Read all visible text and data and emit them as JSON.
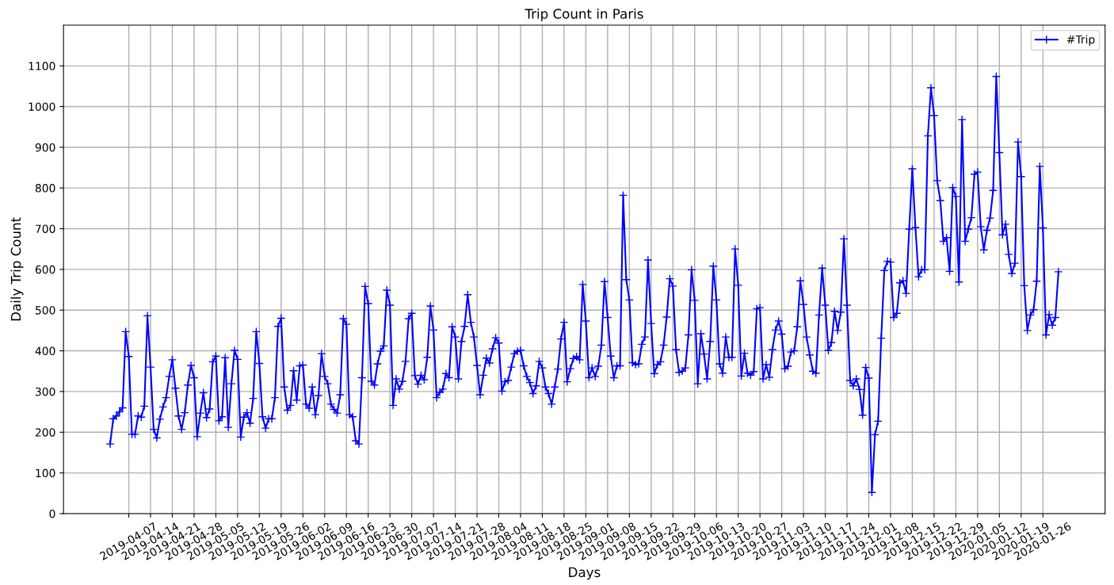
{
  "chart_data": {
    "type": "line",
    "title": "Trip Count in Paris",
    "xlabel": "Days",
    "ylabel": "Daily Trip Count",
    "x": [
      "2019-04-01",
      "2019-04-02",
      "2019-04-03",
      "2019-04-04",
      "2019-04-05",
      "2019-04-06",
      "2019-04-07",
      "2019-04-08",
      "2019-04-09",
      "2019-04-10",
      "2019-04-11",
      "2019-04-12",
      "2019-04-13",
      "2019-04-14",
      "2019-04-15",
      "2019-04-16",
      "2019-04-17",
      "2019-04-18",
      "2019-04-19",
      "2019-04-20",
      "2019-04-21",
      "2019-04-22",
      "2019-04-23",
      "2019-04-24",
      "2019-04-25",
      "2019-04-26",
      "2019-04-27",
      "2019-04-28",
      "2019-04-29",
      "2019-04-30",
      "2019-05-01",
      "2019-05-02",
      "2019-05-03",
      "2019-05-04",
      "2019-05-05",
      "2019-05-06",
      "2019-05-07",
      "2019-05-08",
      "2019-05-09",
      "2019-05-10",
      "2019-05-11",
      "2019-05-12",
      "2019-05-13",
      "2019-05-14",
      "2019-05-15",
      "2019-05-16",
      "2019-05-17",
      "2019-05-18",
      "2019-05-19",
      "2019-05-20",
      "2019-05-21",
      "2019-05-22",
      "2019-05-23",
      "2019-05-24",
      "2019-05-25",
      "2019-05-26",
      "2019-05-27",
      "2019-05-28",
      "2019-05-29",
      "2019-05-30",
      "2019-05-31",
      "2019-06-01",
      "2019-06-02",
      "2019-06-03",
      "2019-06-04",
      "2019-06-05",
      "2019-06-06",
      "2019-06-07",
      "2019-06-08",
      "2019-06-09",
      "2019-06-10",
      "2019-06-11",
      "2019-06-12",
      "2019-06-13",
      "2019-06-14",
      "2019-06-15",
      "2019-06-16",
      "2019-06-17",
      "2019-06-18",
      "2019-06-19",
      "2019-06-20",
      "2019-06-21",
      "2019-06-22",
      "2019-06-23",
      "2019-06-24",
      "2019-06-25",
      "2019-06-26",
      "2019-06-27",
      "2019-06-28",
      "2019-06-29",
      "2019-06-30",
      "2019-07-01",
      "2019-07-02",
      "2019-07-03",
      "2019-07-04",
      "2019-07-05",
      "2019-07-06",
      "2019-07-07",
      "2019-07-08",
      "2019-07-09",
      "2019-07-10",
      "2019-07-11",
      "2019-07-12",
      "2019-07-13",
      "2019-07-14",
      "2019-07-15",
      "2019-07-16",
      "2019-07-17",
      "2019-07-18",
      "2019-07-19",
      "2019-07-20",
      "2019-07-21",
      "2019-07-22",
      "2019-07-23",
      "2019-07-24",
      "2019-07-25",
      "2019-07-26",
      "2019-07-27",
      "2019-07-28",
      "2019-07-29",
      "2019-07-30",
      "2019-07-31",
      "2019-08-01",
      "2019-08-02",
      "2019-08-03",
      "2019-08-04",
      "2019-08-05",
      "2019-08-06",
      "2019-08-07",
      "2019-08-08",
      "2019-08-09",
      "2019-08-10",
      "2019-08-11",
      "2019-08-12",
      "2019-08-13",
      "2019-08-14",
      "2019-08-15",
      "2019-08-16",
      "2019-08-17",
      "2019-08-18",
      "2019-08-19",
      "2019-08-20",
      "2019-08-21",
      "2019-08-22",
      "2019-08-23",
      "2019-08-24",
      "2019-08-25",
      "2019-08-26",
      "2019-08-27",
      "2019-08-28",
      "2019-08-29",
      "2019-08-30",
      "2019-08-31",
      "2019-09-01",
      "2019-09-02",
      "2019-09-03",
      "2019-09-04",
      "2019-09-05",
      "2019-09-06",
      "2019-09-07",
      "2019-09-08",
      "2019-09-09",
      "2019-09-10",
      "2019-09-11",
      "2019-09-12",
      "2019-09-13",
      "2019-09-14",
      "2019-09-15",
      "2019-09-16",
      "2019-09-17",
      "2019-09-18",
      "2019-09-19",
      "2019-09-20",
      "2019-09-21",
      "2019-09-22",
      "2019-09-23",
      "2019-09-24",
      "2019-09-25",
      "2019-09-26",
      "2019-09-27",
      "2019-09-28",
      "2019-09-29",
      "2019-09-30",
      "2019-10-01",
      "2019-10-02",
      "2019-10-03",
      "2019-10-04",
      "2019-10-05",
      "2019-10-06",
      "2019-10-07",
      "2019-10-08",
      "2019-10-09",
      "2019-10-10",
      "2019-10-11",
      "2019-10-12",
      "2019-10-13",
      "2019-10-14",
      "2019-10-15",
      "2019-10-16",
      "2019-10-17",
      "2019-10-18",
      "2019-10-19",
      "2019-10-20",
      "2019-10-21",
      "2019-10-22",
      "2019-10-23",
      "2019-10-24",
      "2019-10-25",
      "2019-10-26",
      "2019-10-27",
      "2019-10-28",
      "2019-10-29",
      "2019-10-30",
      "2019-10-31",
      "2019-11-01",
      "2019-11-02",
      "2019-11-03",
      "2019-11-04",
      "2019-11-05",
      "2019-11-06",
      "2019-11-07",
      "2019-11-08",
      "2019-11-09",
      "2019-11-10",
      "2019-11-11",
      "2019-11-12",
      "2019-11-13",
      "2019-11-14",
      "2019-11-15",
      "2019-11-16",
      "2019-11-17",
      "2019-11-18",
      "2019-11-19",
      "2019-11-20",
      "2019-11-21",
      "2019-11-22",
      "2019-11-23",
      "2019-11-24",
      "2019-11-25",
      "2019-11-26",
      "2019-11-27",
      "2019-11-28",
      "2019-11-29",
      "2019-11-30",
      "2019-12-01",
      "2019-12-02",
      "2019-12-03",
      "2019-12-04",
      "2019-12-05",
      "2019-12-06",
      "2019-12-07",
      "2019-12-08",
      "2019-12-09",
      "2019-12-10",
      "2019-12-11",
      "2019-12-12",
      "2019-12-13",
      "2019-12-14",
      "2019-12-15",
      "2019-12-16",
      "2019-12-17",
      "2019-12-18",
      "2019-12-19",
      "2019-12-20",
      "2019-12-21",
      "2019-12-22",
      "2019-12-23",
      "2019-12-24",
      "2019-12-25",
      "2019-12-26",
      "2019-12-27",
      "2019-12-28",
      "2019-12-29",
      "2019-12-30",
      "2019-12-31",
      "2020-01-01",
      "2020-01-02",
      "2020-01-03",
      "2020-01-04",
      "2020-01-05",
      "2020-01-06",
      "2020-01-07",
      "2020-01-08",
      "2020-01-09",
      "2020-01-10",
      "2020-01-11",
      "2020-01-12",
      "2020-01-13",
      "2020-01-14",
      "2020-01-15",
      "2020-01-16",
      "2020-01-17",
      "2020-01-18",
      "2020-01-19",
      "2020-01-20",
      "2020-01-21",
      "2020-01-22",
      "2020-01-23",
      "2020-01-24",
      "2020-01-25",
      "2020-01-26",
      "2020-01-27",
      "2020-01-28",
      "2020-01-29",
      "2020-01-30",
      "2020-01-31"
    ],
    "series": [
      {
        "name": "#Trip",
        "color": "#0000ff",
        "values": [
          171,
          233,
          240,
          250,
          260,
          447,
          386,
          195,
          195,
          240,
          237,
          264,
          486,
          360,
          207,
          186,
          232,
          262,
          285,
          337,
          378,
          308,
          240,
          207,
          248,
          316,
          364,
          334,
          189,
          247,
          297,
          236,
          257,
          373,
          387,
          228,
          238,
          383,
          212,
          319,
          401,
          379,
          188,
          237,
          248,
          222,
          283,
          447,
          369,
          238,
          210,
          233,
          233,
          285,
          460,
          480,
          311,
          254,
          266,
          351,
          279,
          363,
          365,
          269,
          259,
          311,
          243,
          290,
          393,
          337,
          319,
          269,
          256,
          247,
          292,
          479,
          465,
          243,
          238,
          179,
          171,
          334,
          558,
          516,
          325,
          316,
          368,
          399,
          412,
          549,
          512,
          266,
          331,
          306,
          325,
          374,
          479,
          492,
          339,
          318,
          340,
          329,
          384,
          510,
          451,
          285,
          298,
          306,
          344,
          334,
          459,
          434,
          331,
          423,
          460,
          538,
          470,
          434,
          364,
          292,
          340,
          382,
          370,
          405,
          432,
          419,
          301,
          324,
          327,
          360,
          393,
          399,
          401,
          363,
          337,
          322,
          295,
          314,
          374,
          358,
          311,
          295,
          269,
          311,
          355,
          429,
          470,
          324,
          356,
          381,
          386,
          378,
          563,
          473,
          334,
          358,
          337,
          362,
          414,
          570,
          482,
          387,
          334,
          363,
          363,
          782,
          575,
          525,
          371,
          366,
          368,
          416,
          434,
          623,
          467,
          344,
          366,
          373,
          414,
          483,
          577,
          559,
          403,
          347,
          350,
          358,
          439,
          599,
          524,
          319,
          442,
          392,
          331,
          423,
          608,
          525,
          368,
          345,
          434,
          384,
          384,
          650,
          561,
          338,
          394,
          345,
          340,
          349,
          503,
          506,
          331,
          366,
          335,
          403,
          451,
          473,
          441,
          356,
          362,
          397,
          400,
          459,
          572,
          514,
          434,
          390,
          350,
          345,
          488,
          603,
          512,
          401,
          420,
          497,
          450,
          495,
          675,
          512,
          327,
          314,
          331,
          305,
          242,
          359,
          333,
          52,
          194,
          227,
          431,
          597,
          620,
          618,
          482,
          492,
          567,
          572,
          541,
          699,
          847,
          703,
          582,
          599,
          599,
          928,
          1046,
          978,
          818,
          769,
          669,
          678,
          595,
          801,
          779,
          569,
          968,
          669,
          699,
          727,
          834,
          839,
          705,
          648,
          696,
          726,
          794,
          1074,
          887,
          685,
          711,
          637,
          590,
          615,
          913,
          828,
          560,
          450,
          488,
          501,
          571,
          853,
          702,
          439,
          489,
          463,
          482,
          594
        ]
      }
    ],
    "xlim": [
      "2019-03-17",
      "2020-02-15"
    ],
    "xticks": [
      "2019-04-07",
      "2019-04-14",
      "2019-04-21",
      "2019-04-28",
      "2019-05-05",
      "2019-05-12",
      "2019-05-19",
      "2019-05-26",
      "2019-06-02",
      "2019-06-09",
      "2019-06-16",
      "2019-06-23",
      "2019-06-30",
      "2019-07-07",
      "2019-07-14",
      "2019-07-21",
      "2019-07-28",
      "2019-08-04",
      "2019-08-11",
      "2019-08-18",
      "2019-08-25",
      "2019-09-01",
      "2019-09-08",
      "2019-09-15",
      "2019-09-22",
      "2019-09-29",
      "2019-10-06",
      "2019-10-13",
      "2019-10-20",
      "2019-10-27",
      "2019-11-03",
      "2019-11-10",
      "2019-11-17",
      "2019-11-24",
      "2019-12-01",
      "2019-12-08",
      "2019-12-15",
      "2019-12-22",
      "2019-12-29",
      "2020-01-05",
      "2020-01-12",
      "2020-01-19",
      "2020-01-26"
    ],
    "ylim": [
      0,
      1200
    ],
    "yticks": [
      0,
      100,
      200,
      300,
      400,
      500,
      600,
      700,
      800,
      900,
      1000,
      1100
    ],
    "grid": true,
    "legend": "top right",
    "marker": "cross",
    "line_style": "solid"
  }
}
